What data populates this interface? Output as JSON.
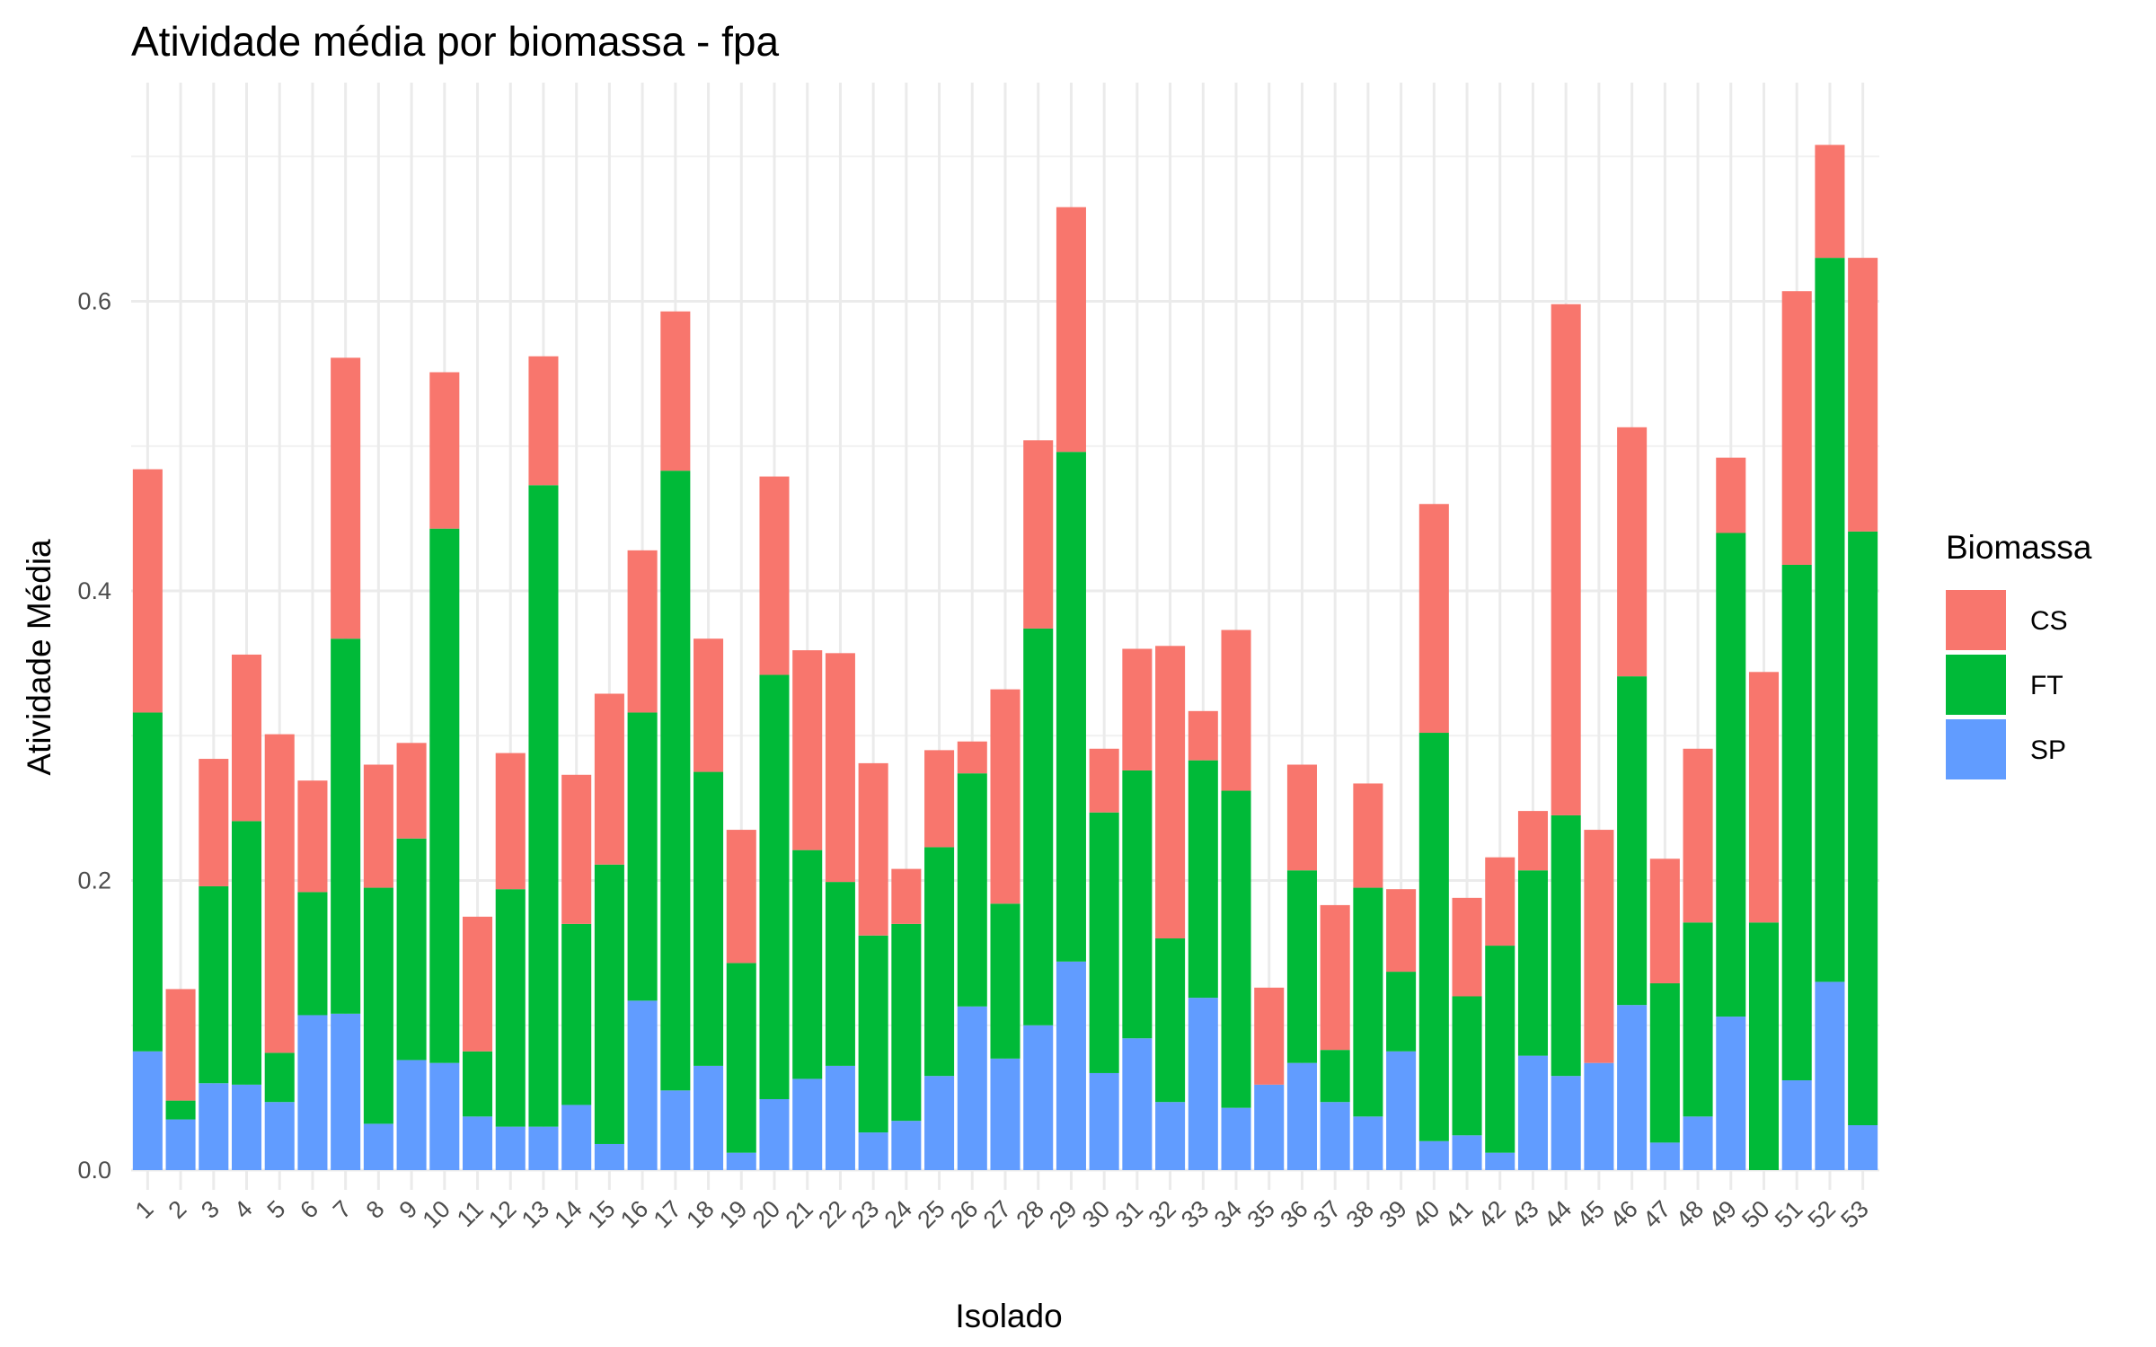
{
  "chart_data": {
    "type": "bar",
    "stacked": true,
    "title": "Atividade média por biomassa - fpa",
    "xlabel": "Isolado",
    "ylabel": "Atividade Média",
    "ylim": [
      0,
      0.72
    ],
    "yticks": [
      "0.0",
      "0.2",
      "0.4",
      "0.6"
    ],
    "grid": true,
    "legend": {
      "title": "Biomassa",
      "position": "right"
    },
    "categories": [
      "1",
      "2",
      "3",
      "4",
      "5",
      "6",
      "7",
      "8",
      "9",
      "10",
      "11",
      "12",
      "13",
      "14",
      "15",
      "16",
      "17",
      "18",
      "19",
      "20",
      "21",
      "22",
      "23",
      "24",
      "25",
      "26",
      "27",
      "28",
      "29",
      "30",
      "31",
      "32",
      "33",
      "34",
      "35",
      "36",
      "37",
      "38",
      "39",
      "40",
      "41",
      "42",
      "43",
      "44",
      "45",
      "46",
      "47",
      "48",
      "49",
      "50",
      "51",
      "52",
      "53"
    ],
    "series": [
      {
        "name": "SP",
        "color": "#619CFF",
        "values": [
          0.082,
          0.035,
          0.06,
          0.059,
          0.047,
          0.107,
          0.108,
          0.032,
          0.076,
          0.074,
          0.037,
          0.03,
          0.03,
          0.045,
          0.018,
          0.117,
          0.055,
          0.072,
          0.012,
          0.049,
          0.063,
          0.072,
          0.026,
          0.034,
          0.065,
          0.113,
          0.077,
          0.1,
          0.144,
          0.067,
          0.091,
          0.047,
          0.119,
          0.043,
          0.059,
          0.074,
          0.047,
          0.037,
          0.082,
          0.02,
          0.024,
          0.012,
          0.079,
          0.065,
          0.074,
          0.114,
          0.019,
          0.037,
          0.106,
          0.0,
          0.062,
          0.13,
          0.031
        ]
      },
      {
        "name": "FT",
        "color": "#00BA38",
        "values": [
          0.234,
          0.013,
          0.136,
          0.182,
          0.034,
          0.085,
          0.259,
          0.163,
          0.153,
          0.369,
          0.045,
          0.164,
          0.443,
          0.125,
          0.193,
          0.199,
          0.428,
          0.203,
          0.131,
          0.293,
          0.158,
          0.127,
          0.136,
          0.136,
          0.158,
          0.161,
          0.107,
          0.274,
          0.352,
          0.18,
          0.185,
          0.113,
          0.164,
          0.219,
          0.0,
          0.133,
          0.036,
          0.158,
          0.055,
          0.282,
          0.096,
          0.143,
          0.128,
          0.18,
          0.0,
          0.227,
          0.11,
          0.134,
          0.334,
          0.171,
          0.356,
          0.5,
          0.41
        ]
      },
      {
        "name": "CS",
        "color": "#F8766D",
        "values": [
          0.168,
          0.077,
          0.088,
          0.115,
          0.22,
          0.077,
          0.194,
          0.085,
          0.066,
          0.108,
          0.093,
          0.094,
          0.089,
          0.103,
          0.118,
          0.112,
          0.11,
          0.092,
          0.092,
          0.137,
          0.138,
          0.158,
          0.119,
          0.038,
          0.067,
          0.022,
          0.148,
          0.13,
          0.169,
          0.044,
          0.084,
          0.202,
          0.034,
          0.111,
          0.067,
          0.073,
          0.1,
          0.072,
          0.057,
          0.158,
          0.068,
          0.061,
          0.041,
          0.353,
          0.161,
          0.172,
          0.086,
          0.12,
          0.052,
          0.173,
          0.189,
          0.078,
          0.189
        ]
      }
    ]
  }
}
